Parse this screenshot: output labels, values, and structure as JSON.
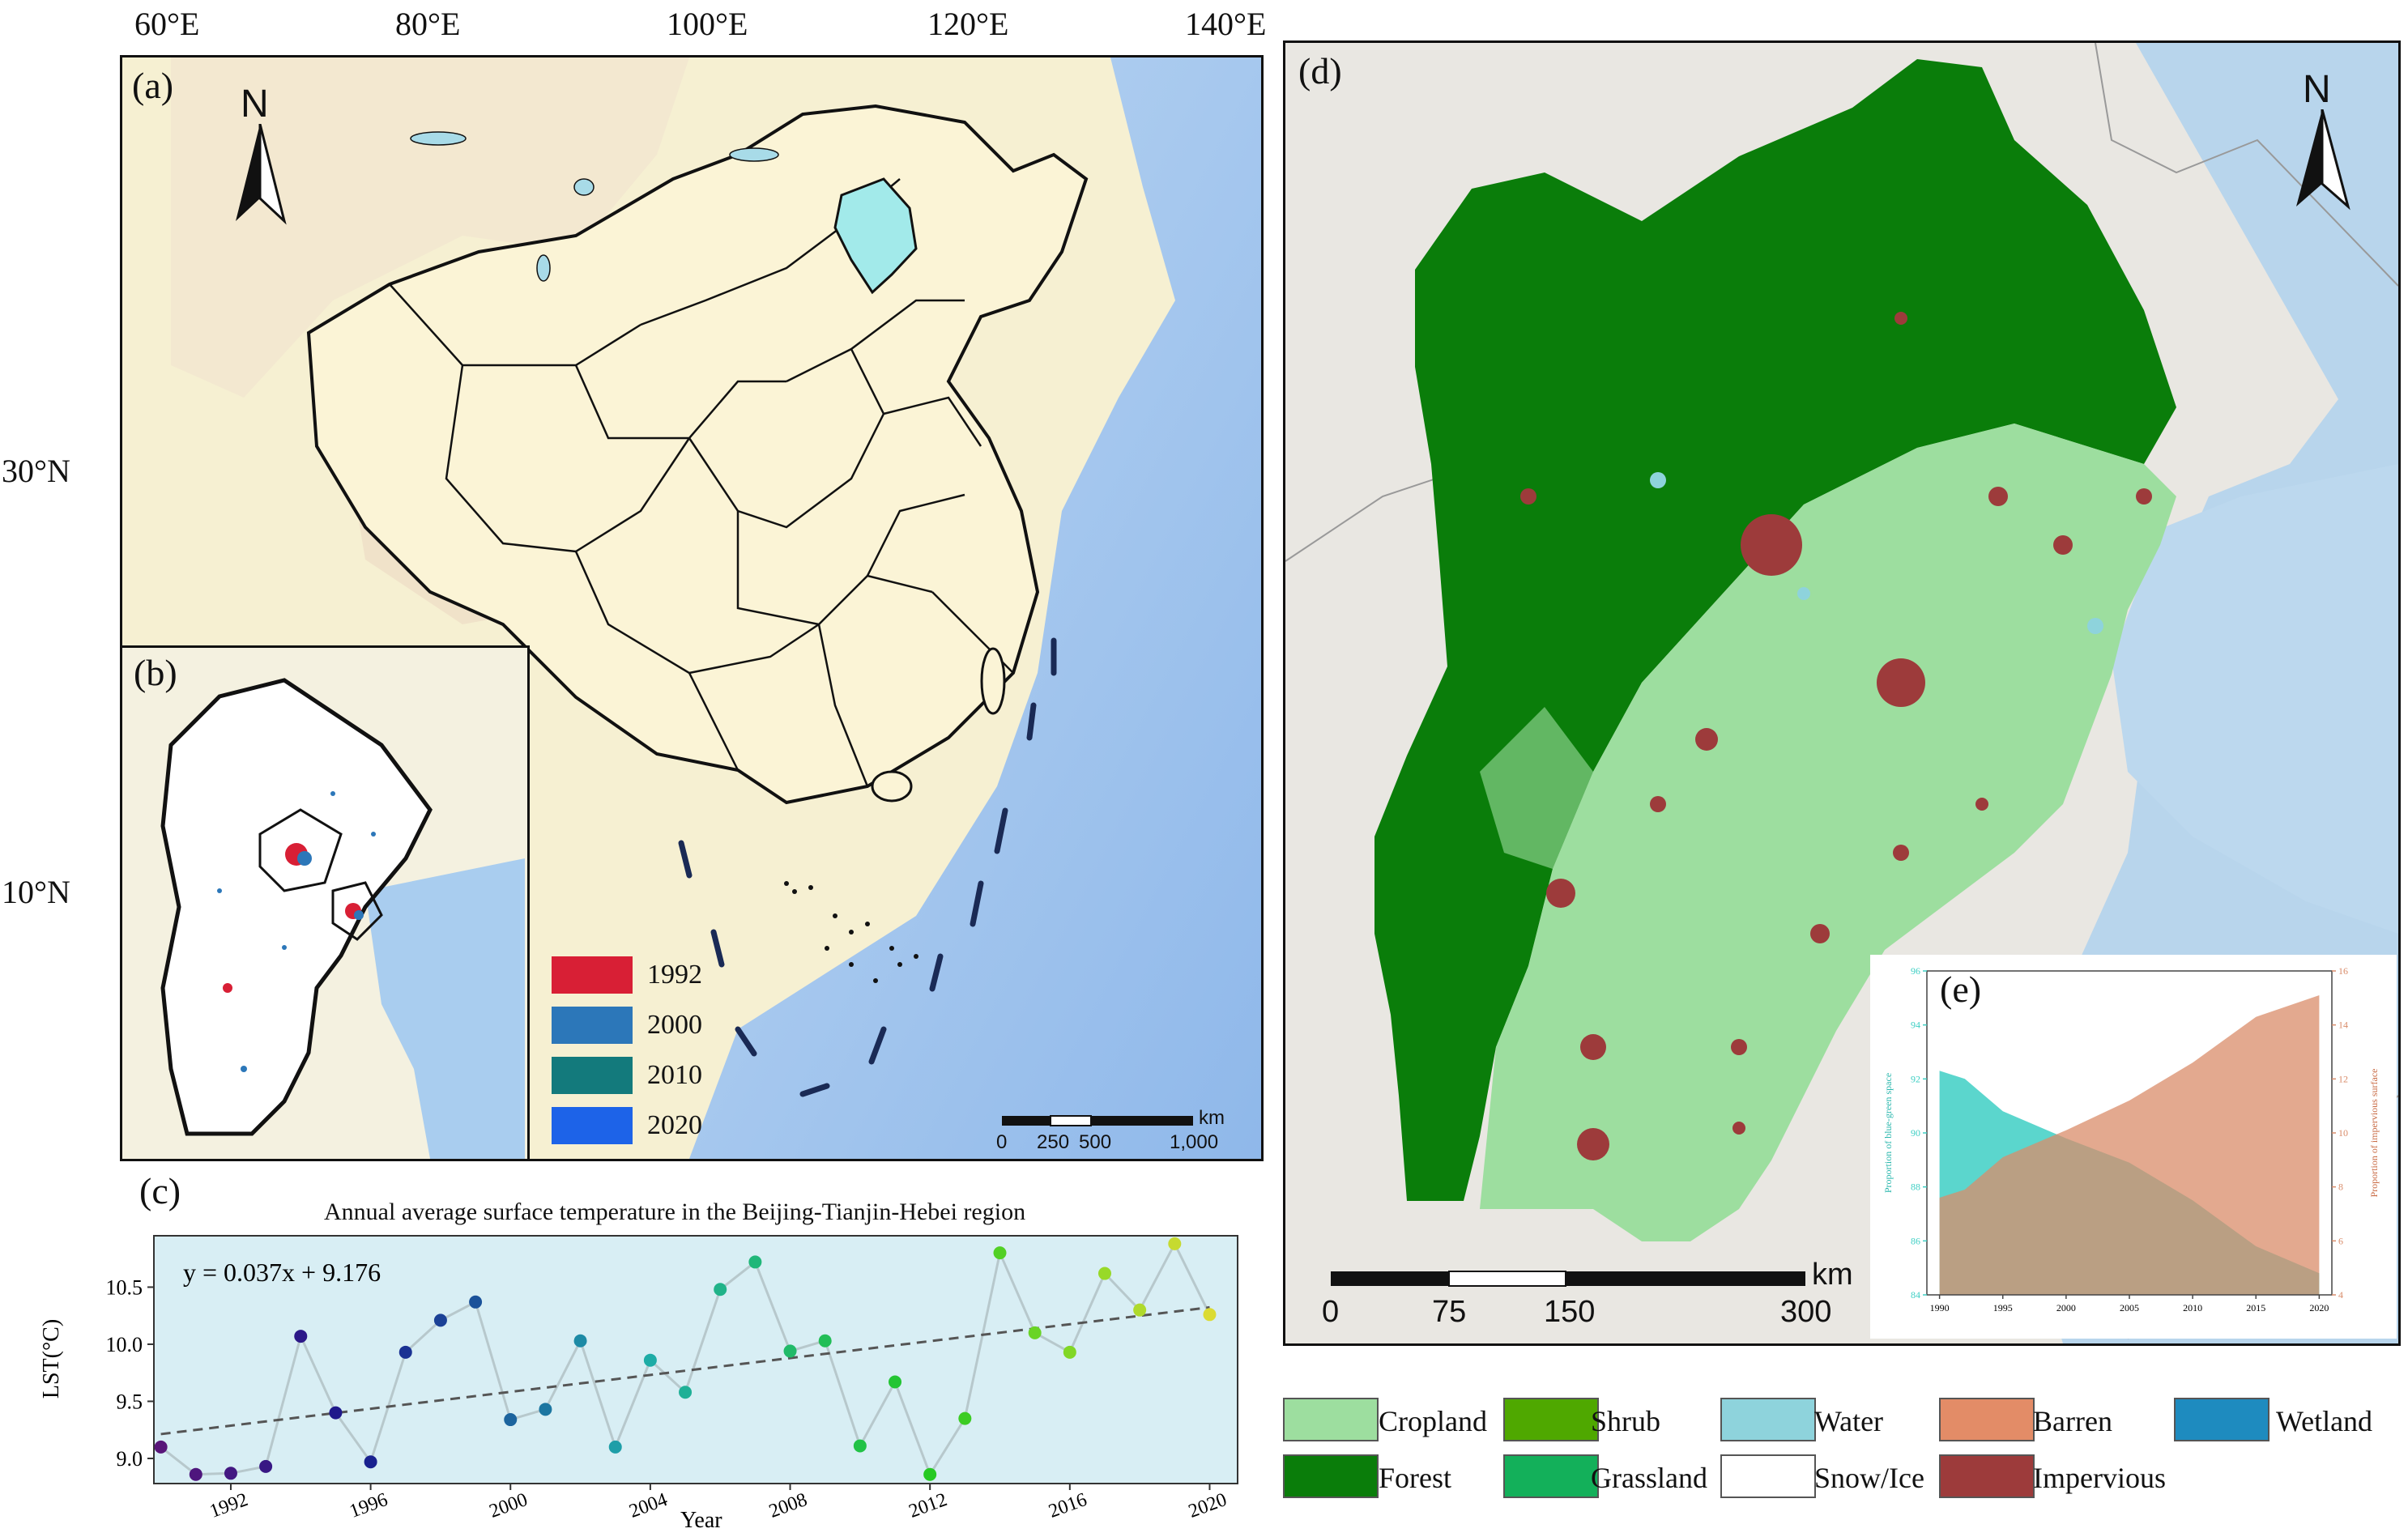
{
  "panel_a": {
    "label": "(a)",
    "top_ticks": [
      "60°E",
      "80°E",
      "100°E",
      "120°E",
      "140°E"
    ],
    "left_ticks": [
      "30°N",
      "10°N"
    ],
    "north": "N",
    "scale_numbers": [
      "0",
      "250",
      "500",
      "1,000"
    ],
    "scale_unit": "km",
    "years_legend": [
      {
        "label": "1992",
        "color": "#d81f35"
      },
      {
        "label": "2000",
        "color": "#2c77b9"
      },
      {
        "label": "2010",
        "color": "#137a7c"
      },
      {
        "label": "2020",
        "color": "#1d63e8"
      }
    ]
  },
  "panel_b": {
    "label": "(b)"
  },
  "panel_c": {
    "label": "(c)",
    "title": "Annual average surface temperature in the Beijing-Tianjin-Hebei region",
    "equation": "y = 0.037x + 9.176",
    "xlabel": "Year",
    "ylabel": "LST(°C)"
  },
  "panel_d": {
    "label": "(d)",
    "north": "N",
    "scale_numbers": [
      "0",
      "75",
      "150",
      "300"
    ],
    "scale_unit": "km"
  },
  "panel_e": {
    "label": "(e)",
    "ylabel_left": "Proportion of blue-green space",
    "ylabel_right": "Proportion of impervious surface"
  },
  "landcover_legend": [
    {
      "label": "Cropland",
      "color": "#9dde9f"
    },
    {
      "label": "Shrub",
      "color": "#4fa800"
    },
    {
      "label": "Water",
      "color": "#8ed3dc"
    },
    {
      "label": "Barren",
      "color": "#e38c67"
    },
    {
      "label": "Wetland",
      "color": "#1e8bbf"
    },
    {
      "label": "Forest",
      "color": "#0a7d0a"
    },
    {
      "label": "Grassland",
      "color": "#13b05a"
    },
    {
      "label": "Snow/Ice",
      "color": "#ffffff"
    },
    {
      "label": "Impervious",
      "color": "#9d3b3b"
    }
  ],
  "chart_data": [
    {
      "type": "scatter",
      "title": "Annual average surface temperature in the Beijing-Tianjin-Hebei region",
      "xlabel": "Year",
      "ylabel": "LST(°C)",
      "xlim": [
        1989.8,
        2020.8
      ],
      "ylim": [
        8.78,
        10.95
      ],
      "x_ticks": [
        1992,
        1996,
        2000,
        2004,
        2008,
        2012,
        2016,
        2020
      ],
      "y_ticks": [
        9.0,
        9.5,
        10.0,
        10.5
      ],
      "points": [
        {
          "x": 1990,
          "y": 9.1
        },
        {
          "x": 1991,
          "y": 8.86
        },
        {
          "x": 1992,
          "y": 8.87
        },
        {
          "x": 1993,
          "y": 8.93
        },
        {
          "x": 1994,
          "y": 10.07
        },
        {
          "x": 1995,
          "y": 9.4
        },
        {
          "x": 1996,
          "y": 8.97
        },
        {
          "x": 1997,
          "y": 9.93
        },
        {
          "x": 1998,
          "y": 10.21
        },
        {
          "x": 1999,
          "y": 10.37
        },
        {
          "x": 2000,
          "y": 9.34
        },
        {
          "x": 2001,
          "y": 9.43
        },
        {
          "x": 2002,
          "y": 10.03
        },
        {
          "x": 2003,
          "y": 9.1
        },
        {
          "x": 2004,
          "y": 9.86
        },
        {
          "x": 2005,
          "y": 9.58
        },
        {
          "x": 2006,
          "y": 10.48
        },
        {
          "x": 2007,
          "y": 10.72
        },
        {
          "x": 2008,
          "y": 9.94
        },
        {
          "x": 2009,
          "y": 10.03
        },
        {
          "x": 2010,
          "y": 9.11
        },
        {
          "x": 2011,
          "y": 9.67
        },
        {
          "x": 2012,
          "y": 8.86
        },
        {
          "x": 2013,
          "y": 9.35
        },
        {
          "x": 2014,
          "y": 10.8
        },
        {
          "x": 2015,
          "y": 10.1
        },
        {
          "x": 2016,
          "y": 9.93
        },
        {
          "x": 2017,
          "y": 10.62
        },
        {
          "x": 2018,
          "y": 10.3
        },
        {
          "x": 2019,
          "y": 10.88
        },
        {
          "x": 2020,
          "y": 10.26
        }
      ],
      "trend": {
        "slope": 0.037,
        "intercept": 9.176,
        "start_year": 1990
      }
    },
    {
      "type": "area",
      "xlim": [
        1989,
        2021
      ],
      "x_ticks": [
        1990,
        1995,
        2000,
        2005,
        2010,
        2015,
        2020
      ],
      "left_axis": {
        "label": "Proportion of blue-green space",
        "ylim": [
          84,
          96
        ],
        "ticks": [
          84,
          86,
          88,
          90,
          92,
          94,
          96
        ],
        "color": "#3ecfc4"
      },
      "right_axis": {
        "label": "Proportion of impervious surface",
        "ylim": [
          4,
          16
        ],
        "ticks": [
          4,
          6,
          8,
          10,
          12,
          14,
          16
        ],
        "color": "#d98c6a"
      },
      "series": [
        {
          "name": "Proportion of blue-green space",
          "axis": "left",
          "x": [
            1990,
            1992,
            1995,
            2000,
            2005,
            2010,
            2015,
            2020
          ],
          "values": [
            92.3,
            92.0,
            90.8,
            89.8,
            88.9,
            87.5,
            85.8,
            84.8
          ]
        },
        {
          "name": "Proportion of impervious surface",
          "axis": "right",
          "x": [
            1990,
            1992,
            1995,
            2000,
            2005,
            2010,
            2015,
            2020
          ],
          "values": [
            7.6,
            7.9,
            9.1,
            10.1,
            11.2,
            12.6,
            14.3,
            15.1
          ]
        }
      ]
    }
  ]
}
